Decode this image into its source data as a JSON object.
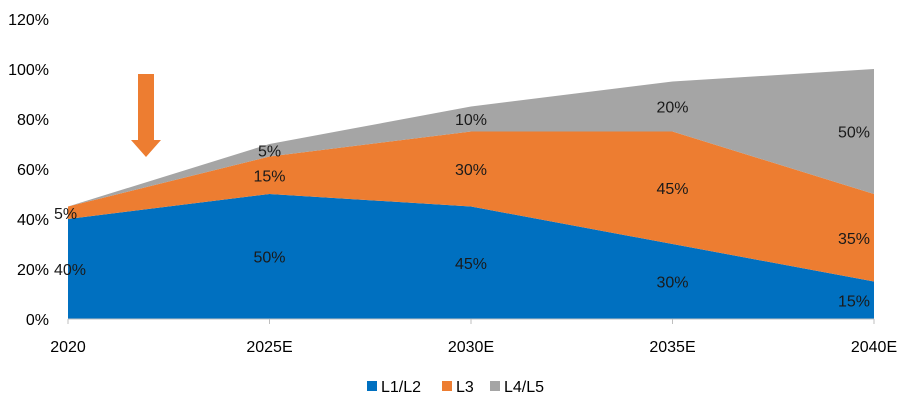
{
  "chart_data": {
    "type": "area",
    "stacked": true,
    "title": "",
    "xlabel": "",
    "ylabel": "",
    "categories": [
      "2020",
      "2025E",
      "2030E",
      "2035E",
      "2040E"
    ],
    "ylim": [
      0,
      120
    ],
    "yticks": [
      0,
      20,
      40,
      60,
      80,
      100,
      120
    ],
    "ytick_labels": [
      "0%",
      "20%",
      "40%",
      "60%",
      "80%",
      "100%",
      "120%"
    ],
    "grid": false,
    "legend_position": "bottom",
    "series": [
      {
        "name": "L1/L2",
        "color": "#0070C0",
        "values": [
          40,
          50,
          45,
          30,
          15
        ],
        "labels": [
          "40%",
          "50%",
          "45%",
          "30%",
          "15%"
        ]
      },
      {
        "name": "L3",
        "color": "#ED7D31",
        "values": [
          5,
          15,
          30,
          45,
          35
        ],
        "labels": [
          "5%",
          "15%",
          "30%",
          "45%",
          "35%"
        ]
      },
      {
        "name": "L4/L5",
        "color": "#A5A5A5",
        "values": [
          0,
          5,
          10,
          20,
          50
        ],
        "labels": [
          "",
          "5%",
          "10%",
          "20%",
          "50%"
        ]
      }
    ],
    "annotations": [
      {
        "type": "arrow-down",
        "color": "#ED7D31",
        "near_category": "2020-2025E"
      }
    ]
  }
}
